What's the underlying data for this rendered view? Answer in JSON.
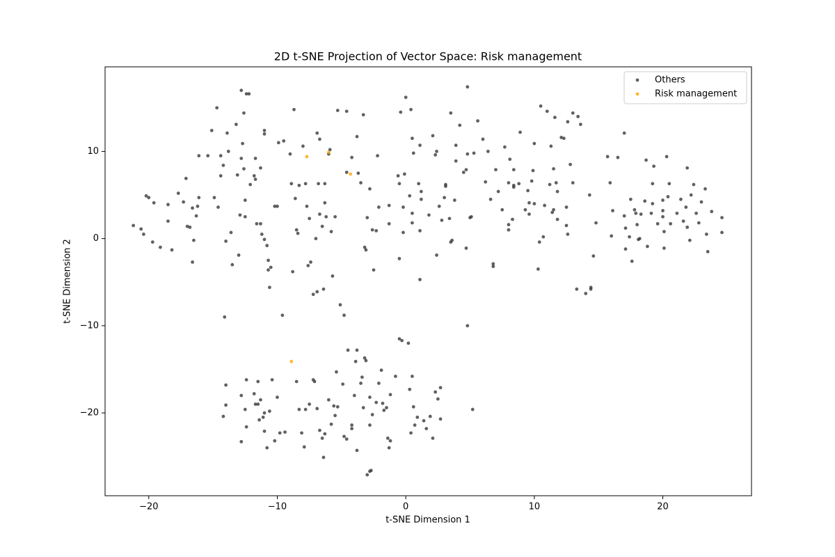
{
  "chart_data": {
    "type": "scatter",
    "title": "2D t-SNE Projection of Vector Space: Risk management",
    "xlabel": "t-SNE Dimension 1",
    "ylabel": "t-SNE Dimension 2",
    "xlim": [
      -23.4,
      26.9
    ],
    "ylim": [
      -29.5,
      19.7
    ],
    "xticks": [
      {
        "value": -20,
        "label": "−20"
      },
      {
        "value": -10,
        "label": "−10"
      },
      0,
      10,
      20
    ],
    "yticks": [
      {
        "value": -20,
        "label": "−20"
      },
      {
        "value": -10,
        "label": "−10"
      },
      0,
      10
    ],
    "legend": "upper right",
    "series": [
      {
        "name": "Others",
        "color": "#3a3a3a",
        "x": [
          -21.2,
          -20.6,
          -20.4,
          -20.2,
          -20,
          -19.7,
          -19.6,
          -19.1,
          -18.5,
          -18.5,
          -18.2,
          -17.7,
          -17.3,
          -17.1,
          -17,
          -16.8,
          -16.6,
          -16.5,
          -16.6,
          -16.3,
          -16.2,
          -16.1,
          -16.1,
          -15.4,
          -15.1,
          -14.9,
          -14.7,
          -14.6,
          -14.4,
          -14.4,
          -14.2,
          -14,
          -13.9,
          -13.8,
          -13.6,
          -13.5,
          -13.2,
          -13.1,
          -13,
          -12.9,
          -12.8,
          -12.8,
          -12.6,
          -12.7,
          -12.6,
          -12.5,
          -12.4,
          -12.2,
          -12.5,
          -12.1,
          -11.8,
          -11.7,
          -11.7,
          -11.6,
          -11.3,
          -11.3,
          -11.2,
          -11,
          -11,
          -11,
          -10.8,
          -10.7,
          -10.7,
          -10.6,
          -10.5,
          -10.2,
          -10,
          -9.9,
          -9.5,
          -9.6,
          -14.1,
          -9,
          -8.9,
          -8.8,
          -8.7,
          -8.6,
          -8.5,
          -8.4,
          -8.3,
          -8,
          -7.8,
          -7.7,
          -7.6,
          -7.5,
          -7.4,
          -7.2,
          -7,
          -6.9,
          -6.9,
          -6.7,
          -6.8,
          -6.7,
          -6.5,
          -6.4,
          -6.3,
          -6.3,
          -6.2,
          -6,
          -5.9,
          -5.8,
          -5.7,
          -5.5,
          -5.3,
          -5.1,
          -4.8,
          -4.6,
          -4.6,
          -4.2,
          -3.8,
          -3.7,
          -3.5,
          -3.3,
          -3.2,
          -3.1,
          -3,
          -2.8,
          -2.6,
          -2.5,
          -2.2,
          -2.1,
          -2.3,
          -1.3,
          -1.3,
          -0.6,
          -0.5,
          -0.5,
          -0.4,
          -0.2,
          -0.1,
          -0.2,
          0,
          0.3,
          0.4,
          0.5,
          0.5,
          0.6,
          0.5,
          1,
          1.1,
          1.2,
          1.2,
          1.1,
          1.1,
          1.8,
          2.1,
          2.4,
          2.3,
          2.4,
          2.6,
          2.8,
          3,
          3.1,
          3.1,
          3.4,
          3.5,
          3.6,
          3.5,
          3.8,
          3.9,
          3.9,
          4.2,
          4.5,
          4.7,
          4.7,
          4.8,
          4.8,
          5,
          5.1,
          5.3,
          5.6,
          6,
          6.2,
          6.4,
          6.6,
          6.8,
          6.8,
          7,
          7.2,
          7.5,
          7.7,
          8,
          8,
          8,
          8.1,
          8.3,
          8.4,
          8.4,
          8.4,
          8.9,
          8.8,
          9.3,
          9.5,
          9.6,
          9.6,
          9.8,
          9.9,
          10,
          10,
          10.3,
          10.4,
          10.5,
          10.7,
          10.8,
          11,
          11.2,
          11.3,
          11.4,
          11.5,
          11.6,
          11.5,
          11.8,
          11.7,
          11.8,
          12.1,
          12.3,
          12.5,
          12.5,
          12.6,
          12.6,
          12.8,
          13,
          13,
          13.4,
          13.3,
          13.6,
          14,
          14.3,
          14.4,
          14.4,
          14.6,
          14.8,
          15.7,
          15.9,
          16,
          16.1,
          16.5,
          17,
          17,
          17.1,
          17.1,
          17.4,
          17.5,
          17.6,
          17.8,
          17.9,
          18,
          18.1,
          18.2,
          18.3,
          18.6,
          18.8,
          18.7,
          19.1,
          19.2,
          19.2,
          19.3,
          19.6,
          20,
          20,
          20.1,
          20,
          20.1,
          20.3,
          20.4,
          20.6,
          20.5,
          21.1,
          21.4,
          21.6,
          21.8,
          21.9,
          21.9,
          22.1,
          22.2,
          22.4,
          22.6,
          22.8,
          23,
          23.3,
          23.4,
          23.5,
          23.8,
          24.6,
          24.6,
          -14.2,
          -14,
          -14,
          -12.8,
          -12.8,
          -12.5,
          -12.4,
          -12.4,
          -11.8,
          -11.7,
          -11.5,
          -11.5,
          -11.4,
          -11.3,
          -11.1,
          -11,
          -11,
          -10.8,
          -10.6,
          -10.4,
          -10.2,
          -10,
          -9.8,
          -9.4,
          -8.5,
          -8.3,
          -8.1,
          -7.9,
          -7.8,
          -7.5,
          -7.2,
          -7.1,
          -6.9,
          -6.7,
          -6.5,
          -6.4,
          -6.3,
          -6,
          -5.8,
          -5.6,
          -5.5,
          -5.4,
          -5.3,
          -4.9,
          -4.8,
          -4.6,
          -4.5,
          -4.2,
          -4.2,
          -4,
          -3.9,
          -3.8,
          -3.8,
          -3.5,
          -3.4,
          -3.3,
          -3.2,
          -3.1,
          -3,
          -2.8,
          -2.7,
          -2.8,
          -2.8,
          -2.6,
          -2.3,
          -2.1,
          -1.9,
          -1.8,
          -1.7,
          -1.5,
          -1.4,
          -1.3,
          -1.2,
          -1.2,
          -0.8,
          -0.5,
          -0.3,
          0.2,
          0.3,
          0.4,
          0.5,
          0.6,
          0.7,
          0.9,
          1.4,
          1.6,
          1.9,
          2.1,
          2.3,
          2.5,
          2.7,
          2.7,
          4.8,
          5.2
        ],
        "values": [
          1.5,
          1.1,
          0.5,
          4.9,
          4.7,
          -0.4,
          4.1,
          -1,
          2,
          3.9,
          -1.3,
          5.2,
          4.2,
          6.9,
          1.4,
          1.3,
          3.5,
          -0.2,
          -2.7,
          2.6,
          3.7,
          4.7,
          9.5,
          9.5,
          12.4,
          4.7,
          15,
          3.6,
          9.5,
          7.2,
          8.4,
          -0.3,
          12.1,
          10,
          0.7,
          -3,
          13.1,
          7.3,
          -1.9,
          2.7,
          9.2,
          17,
          14.4,
          10.9,
          8,
          2.5,
          16.6,
          16.6,
          4.4,
          6.2,
          7.2,
          6.8,
          9.2,
          1.7,
          8.1,
          1.7,
          0.5,
          12.4,
          12,
          -0.1,
          -0.8,
          -2.5,
          -3.6,
          -5.6,
          -3.3,
          3.7,
          3.7,
          11,
          11.2,
          -8.8,
          -9,
          9.7,
          6.3,
          -3.8,
          14.8,
          4.6,
          1,
          0.6,
          6.1,
          10.6,
          6.3,
          3.7,
          -3.1,
          2.3,
          -2.7,
          -6.4,
          0,
          -6.1,
          12.1,
          11.4,
          6.3,
          2.8,
          1.4,
          -5.8,
          4.1,
          6.3,
          2.5,
          9.7,
          10.2,
          0.8,
          -4.3,
          2.5,
          14.7,
          -7.6,
          -8.8,
          7.6,
          14.6,
          9.3,
          11.7,
          7.5,
          6.4,
          14.2,
          -1,
          -1.3,
          2.4,
          5.7,
          1,
          -3.6,
          9.5,
          3.6,
          0.9,
          3.8,
          1.7,
          7.2,
          6.3,
          -2.3,
          14.5,
          3.6,
          7.4,
          0.7,
          16.2,
          4.9,
          14.8,
          2.9,
          11.5,
          9.8,
          1.8,
          6.3,
          10.7,
          5.4,
          4.5,
          0.9,
          -4.7,
          2.7,
          11.8,
          10,
          9.6,
          -1.9,
          3.7,
          2.1,
          4.7,
          6.2,
          6,
          2.3,
          -0.4,
          -0.2,
          14.4,
          4.4,
          8.9,
          10.7,
          13,
          7.6,
          7.9,
          -1.1,
          9.7,
          17.4,
          2.4,
          2.5,
          9.8,
          13.5,
          11.4,
          6.5,
          10,
          4.5,
          -2.9,
          -3.2,
          7.9,
          5.4,
          3.3,
          10.5,
          6.4,
          1.6,
          1,
          9.1,
          2.2,
          6.1,
          5.9,
          7.9,
          12.2,
          6.3,
          3.3,
          5.5,
          2.8,
          4.1,
          6.6,
          7.8,
          4,
          10.9,
          -3.5,
          -0.4,
          15.2,
          0.2,
          3.8,
          14.6,
          6.2,
          10.6,
          3,
          3.3,
          13.9,
          8,
          5.4,
          6.4,
          2.2,
          11.6,
          11.5,
          3.6,
          1.5,
          0.5,
          13.4,
          8.5,
          6.4,
          14.4,
          14,
          -5.8,
          13.1,
          -6.3,
          5,
          -5.6,
          -5.8,
          -2,
          1.8,
          9.4,
          6.4,
          0.3,
          3.2,
          9.3,
          12.1,
          2.6,
          1.2,
          -1.2,
          0.2,
          4.5,
          -2.6,
          3.3,
          2.9,
          1.6,
          -0.1,
          0,
          2.8,
          4.3,
          -0.9,
          9,
          2.9,
          4,
          6.3,
          8.3,
          1.7,
          4.4,
          2.5,
          0.8,
          3.2,
          -1.1,
          9.4,
          4.8,
          1.7,
          6.3,
          2.9,
          4.5,
          2,
          3.6,
          1.3,
          8.1,
          -0.2,
          5,
          6.2,
          2.9,
          1.8,
          4.2,
          5.7,
          0.5,
          -1.5,
          3.1,
          2.4,
          0.7,
          -20.4,
          -19.1,
          -16.8,
          -18,
          -23.3,
          -19.6,
          -16.2,
          -21.6,
          -17.8,
          -19,
          -19,
          -16.4,
          -20.8,
          -18.5,
          -20.5,
          -20,
          -22.1,
          -24,
          -19.8,
          -16.2,
          -23.2,
          -18.2,
          -22.3,
          -22.2,
          -16.4,
          -19.6,
          -22.3,
          -23.9,
          -19.6,
          -19,
          -16.2,
          -16.4,
          -19.5,
          -22,
          -22.9,
          -25.1,
          -22.4,
          -18.5,
          -21.3,
          -19.2,
          -20.3,
          -15.3,
          -19.3,
          -16.7,
          -22.7,
          -23,
          -12.8,
          -21.4,
          -21.8,
          -18,
          -14.1,
          -24.3,
          -12.8,
          -16.6,
          -15.9,
          -19.4,
          -13.7,
          -14,
          -27.1,
          -26.7,
          -26.6,
          -18.2,
          -21.4,
          -20.2,
          -18.8,
          -16.6,
          -15.1,
          -18.9,
          -19.7,
          -19.4,
          -22.9,
          -24,
          -23.2,
          -17.9,
          -15.8,
          -11.5,
          -11.7,
          -12,
          -17.3,
          -22.3,
          -15.8,
          -19.3,
          -21.4,
          -20.5,
          -20.9,
          -21.8,
          -20.4,
          -22.9,
          -17.6,
          -18.4,
          -20.7,
          -17.1,
          -10,
          -19.6
        ]
      },
      {
        "name": "Risk management",
        "color": "#ffa500",
        "x": [
          -7.7,
          -6.0,
          -4.3,
          -8.9
        ],
        "values": [
          9.4,
          9.9,
          7.4,
          -14.1
        ]
      }
    ]
  }
}
